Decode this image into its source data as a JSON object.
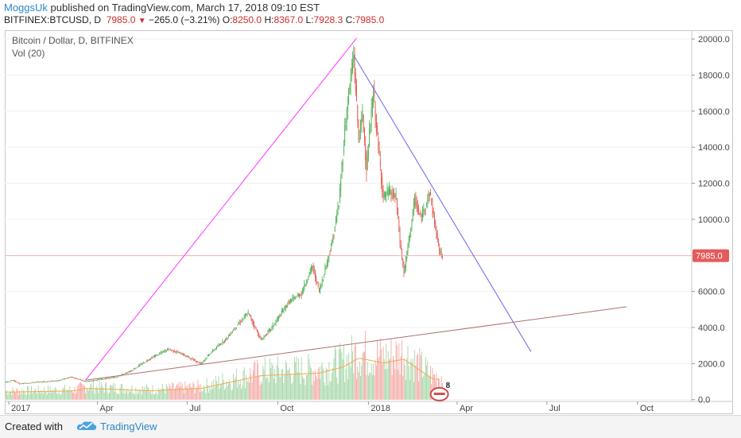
{
  "header": {
    "author": "MoggsUk",
    "published_text": " published on TradingView.com, March 17, 2018 09:10 EST",
    "symbol": "BITFINEX:BTCUSD, D",
    "last": "7985.0",
    "down_arrow": "▼",
    "change": "−265.0 (−3.21%)",
    "o_label": "O:",
    "o_val": "8250.0",
    "h_label": "H:",
    "h_val": "8367.0",
    "l_label": "L:",
    "l_val": "7928.3",
    "c_label": "C:",
    "c_val": "7985.0"
  },
  "legend": {
    "series_title": "Bitcoin / Dollar, D, BITFINEX",
    "volume_title": "Vol (20)"
  },
  "footer": {
    "created_with": "Created with",
    "brand": "TradingView"
  },
  "colors": {
    "up": "#4caf50",
    "down": "#e2574c",
    "vol_up": "#a5d6a7",
    "vol_down": "#f4a7a3",
    "magenta_line": "#ff33ff",
    "blue_line": "#6666ee",
    "brown_line": "#b07070",
    "price_line": "#f3b0b0",
    "price_badge": "#e55b5b",
    "vol_ma": "#f5a94a"
  },
  "chart_data": {
    "type": "candlestick",
    "title": "Bitcoin / Dollar, D, BITFINEX",
    "y_ticks": [
      "20000.0",
      "18000.0",
      "16000.0",
      "14000.0",
      "12000.0",
      "10000.0",
      "6000.0",
      "4000.0",
      "2000.0",
      "0.0"
    ],
    "x_ticks": [
      "2017",
      "Apr",
      "Jul",
      "Oct",
      "2018",
      "Apr",
      "Jul",
      "Oct"
    ],
    "ylim": [
      -100,
      20400
    ],
    "xlim": [
      "2016-12-28",
      "2018-11-25"
    ],
    "current_price": 7985.0,
    "current_price_label": "7985.0",
    "price_series": [
      {
        "date": "2016-12-29",
        "close": 960
      },
      {
        "date": "2017-01-05",
        "close": 1080
      },
      {
        "date": "2017-01-12",
        "close": 880
      },
      {
        "date": "2017-02-01",
        "close": 980
      },
      {
        "date": "2017-02-20",
        "close": 1050
      },
      {
        "date": "2017-03-05",
        "close": 1260
      },
      {
        "date": "2017-03-20",
        "close": 1000
      },
      {
        "date": "2017-04-01",
        "close": 1100
      },
      {
        "date": "2017-04-20",
        "close": 1250
      },
      {
        "date": "2017-05-05",
        "close": 1600
      },
      {
        "date": "2017-05-25",
        "close": 2300
      },
      {
        "date": "2017-06-12",
        "close": 2800
      },
      {
        "date": "2017-06-25",
        "close": 2550
      },
      {
        "date": "2017-07-15",
        "close": 2000
      },
      {
        "date": "2017-07-25",
        "close": 2600
      },
      {
        "date": "2017-08-10",
        "close": 3400
      },
      {
        "date": "2017-08-20",
        "close": 4100
      },
      {
        "date": "2017-09-01",
        "close": 4800
      },
      {
        "date": "2017-09-14",
        "close": 3300
      },
      {
        "date": "2017-09-25",
        "close": 4000
      },
      {
        "date": "2017-10-12",
        "close": 5400
      },
      {
        "date": "2017-10-25",
        "close": 5900
      },
      {
        "date": "2017-11-05",
        "close": 7400
      },
      {
        "date": "2017-11-12",
        "close": 6000
      },
      {
        "date": "2017-11-25",
        "close": 8700
      },
      {
        "date": "2017-12-02",
        "close": 10900
      },
      {
        "date": "2017-12-08",
        "close": 15000
      },
      {
        "date": "2017-12-12",
        "close": 17000
      },
      {
        "date": "2017-12-17",
        "close": 19100
      },
      {
        "date": "2017-12-22",
        "close": 14500
      },
      {
        "date": "2017-12-26",
        "close": 15800
      },
      {
        "date": "2017-12-30",
        "close": 12800
      },
      {
        "date": "2018-01-06",
        "close": 17100
      },
      {
        "date": "2018-01-10",
        "close": 14500
      },
      {
        "date": "2018-01-16",
        "close": 11200
      },
      {
        "date": "2018-01-22",
        "close": 11500
      },
      {
        "date": "2018-01-29",
        "close": 11200
      },
      {
        "date": "2018-02-02",
        "close": 8700
      },
      {
        "date": "2018-02-06",
        "close": 7000
      },
      {
        "date": "2018-02-10",
        "close": 8500
      },
      {
        "date": "2018-02-17",
        "close": 11100
      },
      {
        "date": "2018-02-23",
        "close": 10000
      },
      {
        "date": "2018-03-04",
        "close": 11500
      },
      {
        "date": "2018-03-10",
        "close": 9500
      },
      {
        "date": "2018-03-14",
        "close": 8200
      },
      {
        "date": "2018-03-17",
        "close": 7985
      }
    ],
    "volume_series": [
      {
        "date": "2017-01-05",
        "vol": 600
      },
      {
        "date": "2017-03-10",
        "vol": 700
      },
      {
        "date": "2017-03-20",
        "vol": 900
      },
      {
        "date": "2017-05-25",
        "vol": 700
      },
      {
        "date": "2017-07-16",
        "vol": 900
      },
      {
        "date": "2017-09-14",
        "vol": 1900
      },
      {
        "date": "2017-11-12",
        "vol": 2100
      },
      {
        "date": "2017-12-07",
        "vol": 2600
      },
      {
        "date": "2017-12-22",
        "vol": 3300
      },
      {
        "date": "2018-01-16",
        "vol": 2900
      },
      {
        "date": "2018-02-06",
        "vol": 3200
      },
      {
        "date": "2018-03-08",
        "vol": 1600
      }
    ],
    "trendlines": [
      {
        "name": "support-rising",
        "from": {
          "date": "2017-03-20",
          "value": 1080
        },
        "to": {
          "date": "2017-12-20",
          "value": 20050
        }
      },
      {
        "name": "resistance-falling",
        "from": {
          "date": "2017-12-17",
          "value": 19100
        },
        "to": {
          "date": "2018-06-15",
          "value": 2650
        }
      },
      {
        "name": "long-support",
        "from": {
          "date": "2017-03-20",
          "value": 1080
        },
        "to": {
          "date": "2018-09-20",
          "value": 5150
        }
      }
    ],
    "annotations": [
      {
        "text": "8"
      }
    ]
  }
}
